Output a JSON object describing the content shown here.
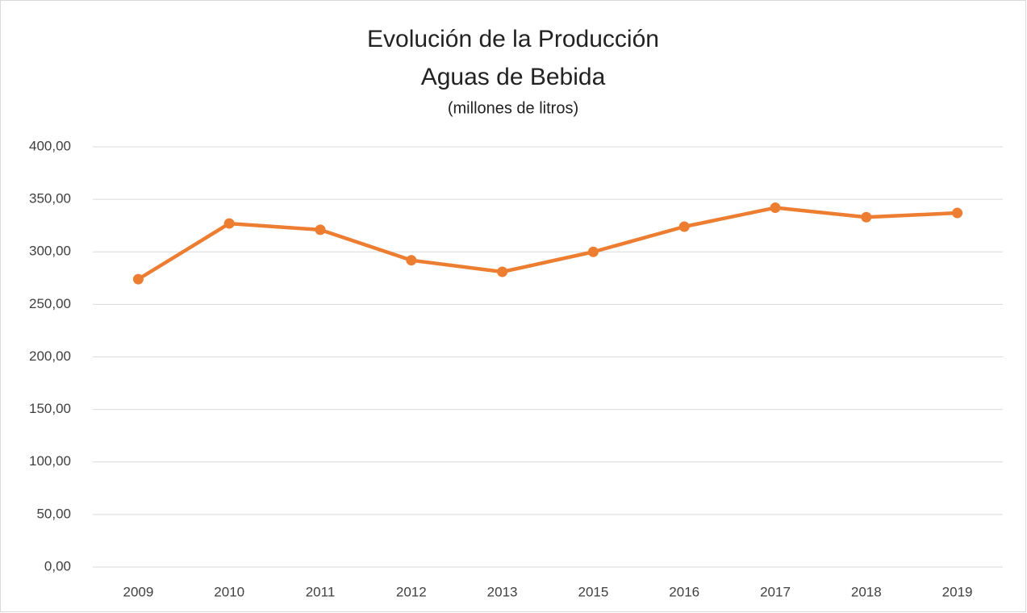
{
  "chart_data": {
    "type": "line",
    "title": [
      "Evolución de la Producción",
      "Aguas de Bebida"
    ],
    "subtitle": "(millones de litros)",
    "categories": [
      "2009",
      "2010",
      "2011",
      "2012",
      "2013",
      "2015",
      "2016",
      "2017",
      "2018",
      "2019"
    ],
    "series": [
      {
        "name": "Producción",
        "color": "#ed7d31",
        "values": [
          274,
          327,
          321,
          292,
          281,
          300,
          324,
          342,
          333,
          337
        ]
      }
    ],
    "ylim": [
      0,
      400
    ],
    "yticks": [
      {
        "value": 0,
        "label": "0,00"
      },
      {
        "value": 50,
        "label": "50,00"
      },
      {
        "value": 100,
        "label": "100,00"
      },
      {
        "value": 150,
        "label": "150,00"
      },
      {
        "value": 200,
        "label": "200,00"
      },
      {
        "value": 250,
        "label": "250,00"
      },
      {
        "value": 300,
        "label": "300,00"
      },
      {
        "value": 350,
        "label": "350,00"
      },
      {
        "value": 400,
        "label": "400,00"
      }
    ],
    "grid": true
  }
}
